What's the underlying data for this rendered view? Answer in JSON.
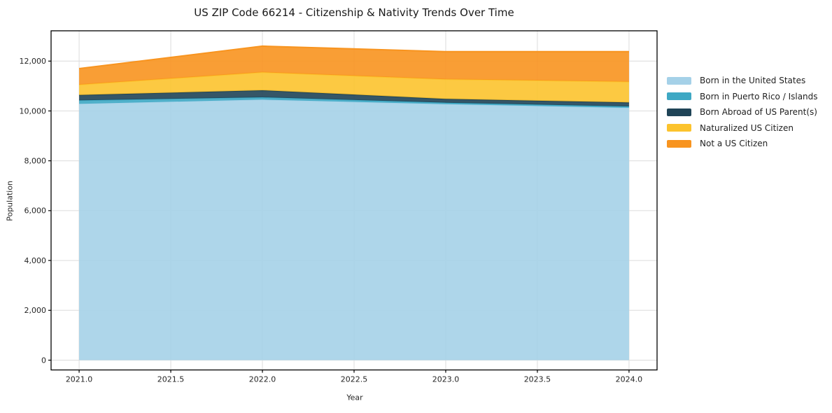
{
  "chart_data": {
    "type": "area",
    "stacked": true,
    "title": "US ZIP Code 66214 - Citizenship & Nativity Trends Over Time",
    "xlabel": "Year",
    "ylabel": "Population",
    "x": [
      2021,
      2022,
      2023,
      2024
    ],
    "series": [
      {
        "name": "Born in the United States",
        "color": "#a5d1e8",
        "values": [
          10286,
          10455,
          10274,
          10126
        ]
      },
      {
        "name": "Born in Puerto Rico / Islands",
        "color": "#3ea8c4",
        "values": [
          140,
          93,
          57,
          56
        ]
      },
      {
        "name": "Born Abroad of US Parent(s)",
        "color": "#1f4457",
        "values": [
          214,
          281,
          152,
          160
        ]
      },
      {
        "name": "Naturalized US Citizen",
        "color": "#fcc32d",
        "values": [
          414,
          722,
          787,
          832
        ]
      },
      {
        "name": "Not a US Citizen",
        "color": "#f8941f",
        "values": [
          646,
          1049,
          1110,
          1205
        ]
      }
    ],
    "totals": [
      11700,
      12600,
      12380,
      12379
    ],
    "x_ticks": [
      "2021.0",
      "2021.5",
      "2022.0",
      "2022.5",
      "2023.0",
      "2023.5",
      "2024.0"
    ],
    "x_tick_values": [
      2021,
      2021.5,
      2022,
      2022.5,
      2023,
      2023.5,
      2024
    ],
    "y_ticks": [
      "0",
      "2,000",
      "4,000",
      "6,000",
      "8,000",
      "10,000",
      "12,000"
    ],
    "y_tick_values": [
      0,
      2000,
      4000,
      6000,
      8000,
      10000,
      12000
    ],
    "xlim": [
      2020.847,
      2024.153
    ],
    "ylim": [
      -393,
      13216
    ],
    "grid": true,
    "legend_position": "right"
  },
  "colors": {
    "grid": "#dcdcdc",
    "frame": "#000000",
    "text": "#262626",
    "background": "#ffffff"
  }
}
